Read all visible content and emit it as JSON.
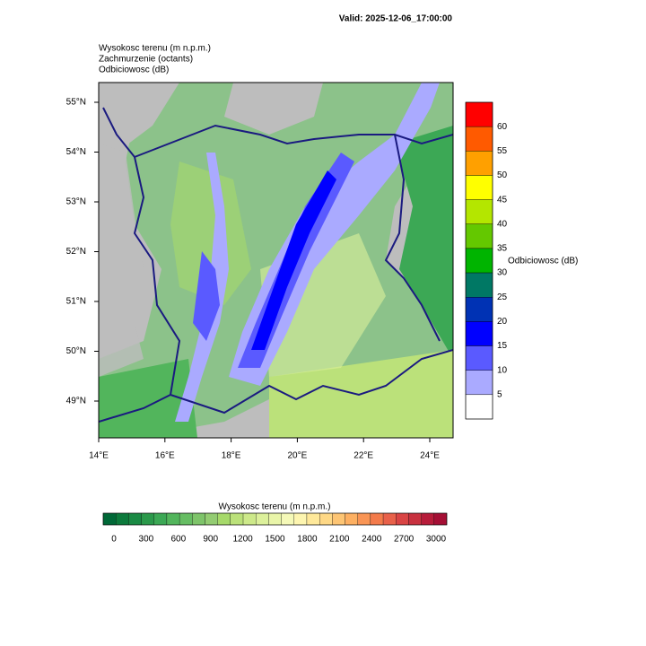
{
  "header": {
    "valid": "Valid: 2025-12-06_17:00:00",
    "titles": [
      "Wysokosc terenu   (m n.p.m.)",
      "Zachmurzenie   (octants)",
      "Odbiciowosc   (dB)"
    ]
  },
  "map": {
    "lat_labels": [
      "55°N",
      "54°N",
      "53°N",
      "52°N",
      "51°N",
      "50°N",
      "49°N"
    ],
    "lon_labels": [
      "14°E",
      "16°E",
      "18°E",
      "20°E",
      "22°E",
      "24°E"
    ]
  },
  "reflectivity_legend": {
    "title": "Odbiciowosc  (dB)",
    "labels": [
      60,
      55,
      50,
      45,
      40,
      35,
      30,
      25,
      20,
      15,
      10,
      5
    ],
    "colors": [
      "#ff0000",
      "#ff5a00",
      "#ffa000",
      "#ffff00",
      "#b4e600",
      "#64c800",
      "#00b400",
      "#007864",
      "#0032b4",
      "#0000ff",
      "#5a5aff",
      "#aaaaff",
      "#ffffff"
    ]
  },
  "terrain_legend": {
    "title": "Wysokosc terenu   (m n.p.m.)",
    "labels": [
      0,
      300,
      600,
      900,
      1200,
      1500,
      1800,
      2100,
      2400,
      2700,
      3000
    ],
    "colors": [
      "#006837",
      "#0c7a3c",
      "#1a8a44",
      "#2b994b",
      "#3ca855",
      "#52b55c",
      "#66bd63",
      "#7ec46a",
      "#93cc72",
      "#a6d96a",
      "#bbe17a",
      "#cde98a",
      "#dcf09b",
      "#e9f5a9",
      "#f5f9b8",
      "#fdf5b0",
      "#fee89a",
      "#fed886",
      "#fdc574",
      "#fdb062",
      "#f99555",
      "#f37b4b",
      "#e8614a",
      "#d94444",
      "#c8313f",
      "#b71c3a",
      "#a50f35"
    ]
  }
}
